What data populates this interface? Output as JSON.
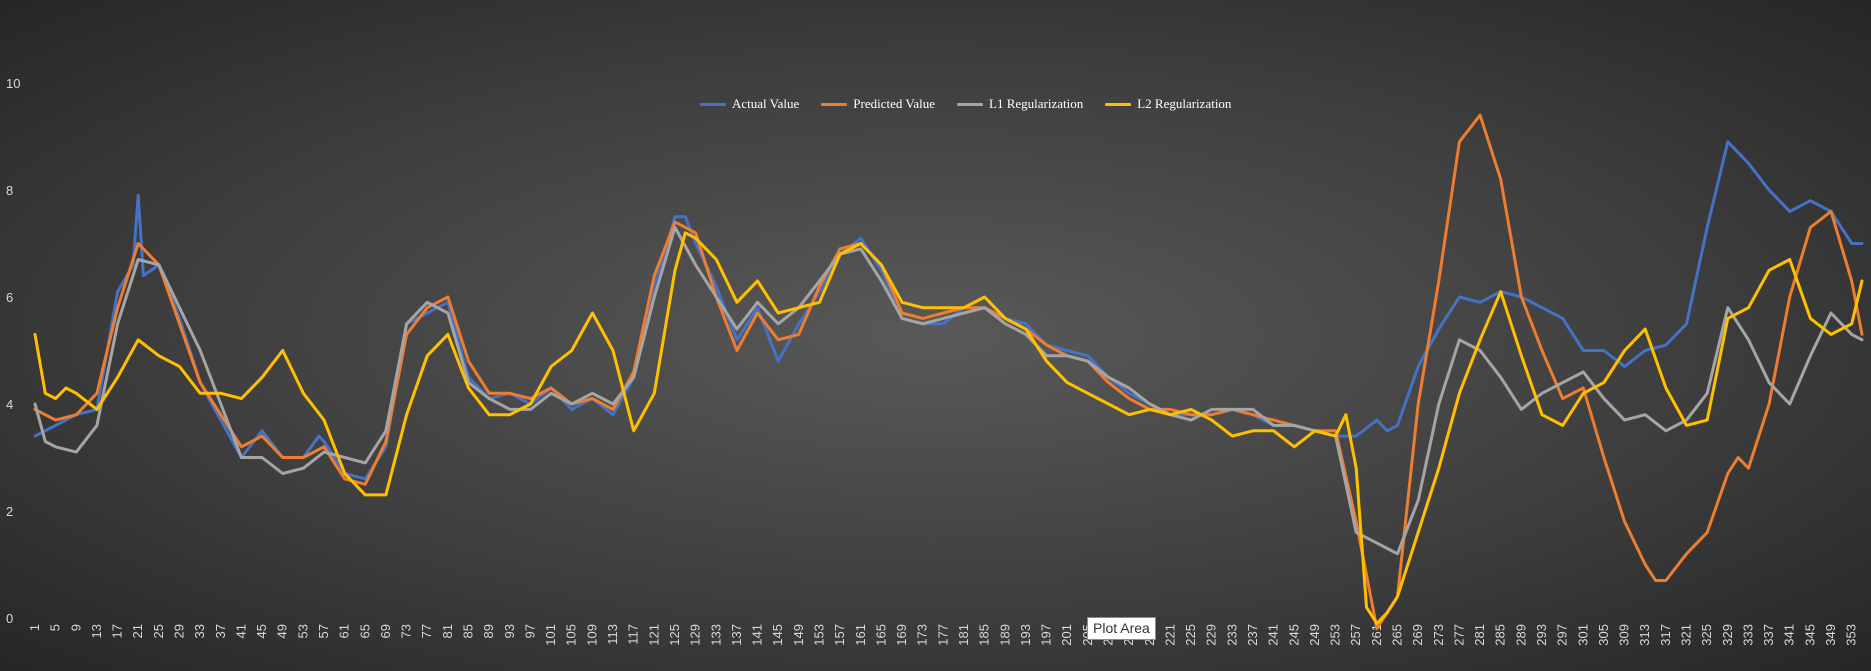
{
  "chart_data": {
    "type": "line",
    "title": "",
    "xlabel": "",
    "ylabel": "",
    "ylim": [
      0,
      10
    ],
    "yticks": [
      0,
      2,
      4,
      6,
      8,
      10
    ],
    "xlim": [
      1,
      355
    ],
    "xticks": [
      1,
      5,
      9,
      13,
      17,
      21,
      25,
      29,
      33,
      37,
      41,
      45,
      49,
      53,
      57,
      61,
      65,
      69,
      73,
      77,
      81,
      85,
      89,
      93,
      97,
      101,
      105,
      109,
      113,
      117,
      121,
      125,
      129,
      133,
      137,
      141,
      145,
      149,
      153,
      157,
      161,
      165,
      169,
      173,
      177,
      181,
      185,
      189,
      193,
      197,
      201,
      205,
      209,
      213,
      217,
      221,
      225,
      229,
      233,
      237,
      241,
      245,
      249,
      253,
      257,
      261,
      265,
      269,
      273,
      277,
      281,
      285,
      289,
      293,
      297,
      301,
      305,
      309,
      313,
      317,
      321,
      325,
      329,
      333,
      337,
      341,
      345,
      349,
      353
    ],
    "grid": false,
    "legend_position": "top-center",
    "series": [
      {
        "name": "Actual Value",
        "color": "#4472C4",
        "x": [
          1,
          5,
          9,
          13,
          17,
          20,
          21,
          22,
          25,
          29,
          33,
          37,
          41,
          45,
          49,
          53,
          56,
          57,
          61,
          65,
          69,
          73,
          77,
          81,
          85,
          89,
          93,
          97,
          101,
          105,
          109,
          113,
          117,
          121,
          125,
          127,
          129,
          133,
          137,
          141,
          145,
          149,
          153,
          157,
          161,
          165,
          169,
          173,
          177,
          181,
          185,
          189,
          193,
          197,
          201,
          205,
          209,
          213,
          217,
          221,
          225,
          229,
          233,
          237,
          241,
          245,
          249,
          253,
          257,
          261,
          263,
          265,
          269,
          273,
          277,
          281,
          285,
          289,
          293,
          297,
          301,
          305,
          309,
          313,
          317,
          321,
          325,
          327,
          329,
          333,
          337,
          341,
          345,
          349,
          353,
          355
        ],
        "values": [
          3.4,
          3.6,
          3.8,
          3.9,
          6.1,
          6.6,
          7.9,
          6.4,
          6.6,
          5.6,
          4.4,
          3.7,
          3.0,
          3.5,
          3.0,
          3.0,
          3.4,
          3.3,
          2.7,
          2.6,
          3.2,
          5.5,
          5.7,
          5.9,
          4.5,
          4.1,
          4.2,
          4.0,
          4.3,
          3.9,
          4.1,
          3.8,
          4.5,
          6.2,
          7.5,
          7.5,
          7.0,
          6.2,
          5.2,
          5.8,
          4.8,
          5.5,
          6.1,
          6.8,
          7.1,
          6.5,
          5.6,
          5.5,
          5.5,
          5.8,
          5.8,
          5.6,
          5.5,
          5.1,
          5.0,
          4.9,
          4.5,
          4.2,
          4.0,
          3.8,
          3.8,
          3.8,
          3.9,
          3.8,
          3.6,
          3.6,
          3.5,
          3.4,
          3.4,
          3.7,
          3.5,
          3.6,
          4.7,
          5.4,
          6.0,
          5.9,
          6.1,
          6.0,
          5.8,
          5.6,
          5.0,
          5.0,
          4.7,
          5.0,
          5.1,
          5.5,
          7.3,
          8.1,
          8.9,
          8.5,
          8.0,
          7.6,
          7.8,
          7.6,
          7.0,
          7.0
        ]
      },
      {
        "name": "Predicted Value",
        "color": "#ED7D31",
        "x": [
          1,
          5,
          9,
          13,
          17,
          21,
          25,
          29,
          33,
          37,
          41,
          45,
          49,
          53,
          57,
          61,
          65,
          69,
          73,
          77,
          81,
          85,
          89,
          93,
          97,
          101,
          105,
          109,
          113,
          117,
          121,
          125,
          129,
          133,
          137,
          141,
          145,
          149,
          153,
          157,
          161,
          165,
          169,
          173,
          177,
          181,
          185,
          189,
          193,
          197,
          201,
          205,
          209,
          213,
          217,
          221,
          225,
          229,
          233,
          237,
          241,
          245,
          249,
          253,
          257,
          261,
          265,
          269,
          273,
          277,
          281,
          285,
          289,
          293,
          297,
          301,
          305,
          309,
          313,
          315,
          317,
          321,
          325,
          329,
          331,
          333,
          337,
          341,
          345,
          349,
          353,
          355
        ],
        "values": [
          3.9,
          3.7,
          3.8,
          4.2,
          5.8,
          7.0,
          6.6,
          5.5,
          4.4,
          3.8,
          3.2,
          3.4,
          3.0,
          3.0,
          3.2,
          2.6,
          2.5,
          3.3,
          5.3,
          5.8,
          6.0,
          4.8,
          4.2,
          4.2,
          4.1,
          4.3,
          4.0,
          4.1,
          3.9,
          4.6,
          6.4,
          7.4,
          7.2,
          6.0,
          5.0,
          5.7,
          5.2,
          5.3,
          6.2,
          6.9,
          7.0,
          6.6,
          5.7,
          5.6,
          5.7,
          5.8,
          5.8,
          5.6,
          5.4,
          5.1,
          4.9,
          4.8,
          4.4,
          4.1,
          3.9,
          3.9,
          3.8,
          3.8,
          3.9,
          3.8,
          3.7,
          3.6,
          3.5,
          3.5,
          1.8,
          -0.2,
          0.4,
          4.0,
          6.3,
          8.9,
          9.4,
          8.2,
          6.0,
          5.0,
          4.1,
          4.3,
          3.0,
          1.8,
          1.0,
          0.7,
          0.7,
          1.2,
          1.6,
          2.7,
          3.0,
          2.8,
          4.0,
          6.0,
          7.3,
          7.6,
          6.3,
          5.3
        ]
      },
      {
        "name": "L1 Regularization",
        "color": "#A5A5A5",
        "x": [
          1,
          3,
          5,
          9,
          13,
          17,
          21,
          25,
          29,
          33,
          37,
          41,
          45,
          49,
          53,
          57,
          61,
          65,
          69,
          73,
          77,
          81,
          85,
          89,
          93,
          97,
          101,
          105,
          109,
          113,
          117,
          121,
          125,
          129,
          133,
          137,
          141,
          145,
          149,
          153,
          157,
          161,
          165,
          169,
          173,
          177,
          181,
          185,
          189,
          193,
          197,
          201,
          205,
          209,
          213,
          217,
          221,
          225,
          229,
          233,
          237,
          241,
          245,
          249,
          253,
          257,
          261,
          265,
          269,
          273,
          277,
          281,
          285,
          289,
          293,
          297,
          301,
          305,
          309,
          313,
          317,
          321,
          325,
          329,
          333,
          337,
          341,
          345,
          349,
          353,
          355
        ],
        "values": [
          4.0,
          3.3,
          3.2,
          3.1,
          3.6,
          5.5,
          6.7,
          6.6,
          5.8,
          5.0,
          4.0,
          3.0,
          3.0,
          2.7,
          2.8,
          3.1,
          3.0,
          2.9,
          3.5,
          5.5,
          5.9,
          5.7,
          4.4,
          4.1,
          3.9,
          3.9,
          4.2,
          4.0,
          4.2,
          4.0,
          4.5,
          6.0,
          7.3,
          6.6,
          6.0,
          5.4,
          5.9,
          5.5,
          5.8,
          6.3,
          6.8,
          6.9,
          6.3,
          5.6,
          5.5,
          5.6,
          5.7,
          5.8,
          5.5,
          5.3,
          4.9,
          4.9,
          4.8,
          4.5,
          4.3,
          4.0,
          3.8,
          3.7,
          3.9,
          3.9,
          3.9,
          3.6,
          3.6,
          3.5,
          3.4,
          1.6,
          1.4,
          1.2,
          2.2,
          4.0,
          5.2,
          5.0,
          4.5,
          3.9,
          4.2,
          4.4,
          4.6,
          4.1,
          3.7,
          3.8,
          3.5,
          3.7,
          4.2,
          5.8,
          5.2,
          4.4,
          4.0,
          4.9,
          5.7,
          5.3,
          5.2
        ]
      },
      {
        "name": "L2 Regularization",
        "color": "#FFC000",
        "x": [
          1,
          3,
          5,
          7,
          9,
          13,
          17,
          21,
          25,
          29,
          33,
          37,
          41,
          45,
          49,
          53,
          57,
          61,
          65,
          69,
          73,
          77,
          81,
          85,
          89,
          93,
          97,
          101,
          105,
          109,
          113,
          117,
          121,
          125,
          127,
          129,
          133,
          137,
          141,
          145,
          149,
          153,
          157,
          161,
          165,
          169,
          173,
          177,
          181,
          185,
          189,
          193,
          197,
          201,
          205,
          209,
          213,
          217,
          221,
          225,
          229,
          233,
          237,
          241,
          245,
          249,
          253,
          255,
          257,
          259,
          261,
          263,
          265,
          269,
          273,
          277,
          281,
          285,
          289,
          293,
          297,
          301,
          305,
          309,
          313,
          317,
          321,
          325,
          329,
          333,
          337,
          341,
          345,
          349,
          353,
          355
        ],
        "values": [
          5.3,
          4.2,
          4.1,
          4.3,
          4.2,
          3.9,
          4.5,
          5.2,
          4.9,
          4.7,
          4.2,
          4.2,
          4.1,
          4.5,
          5.0,
          4.2,
          3.7,
          2.7,
          2.3,
          2.3,
          3.8,
          4.9,
          5.3,
          4.3,
          3.8,
          3.8,
          4.0,
          4.7,
          5.0,
          5.7,
          5.0,
          3.5,
          4.2,
          6.5,
          7.2,
          7.1,
          6.7,
          5.9,
          6.3,
          5.7,
          5.8,
          5.9,
          6.8,
          7.0,
          6.6,
          5.9,
          5.8,
          5.8,
          5.8,
          6.0,
          5.6,
          5.4,
          4.8,
          4.4,
          4.2,
          4.0,
          3.8,
          3.9,
          3.8,
          3.9,
          3.7,
          3.4,
          3.5,
          3.5,
          3.2,
          3.5,
          3.4,
          3.8,
          2.8,
          0.2,
          -0.1,
          0.1,
          0.4,
          1.6,
          2.8,
          4.2,
          5.2,
          6.1,
          4.9,
          3.8,
          3.6,
          4.2,
          4.4,
          5.0,
          5.4,
          4.3,
          3.6,
          3.7,
          5.6,
          5.8,
          6.5,
          6.7,
          5.6,
          5.3,
          5.5,
          6.3
        ]
      }
    ]
  },
  "legend": [
    {
      "label": "Actual Value",
      "color": "#4472C4"
    },
    {
      "label": "Predicted Value",
      "color": "#ED7D31"
    },
    {
      "label": "L1 Regularization",
      "color": "#A5A5A5"
    },
    {
      "label": "L2 Regularization",
      "color": "#FFC000"
    }
  ],
  "tooltip": {
    "label": "Plot Area"
  }
}
